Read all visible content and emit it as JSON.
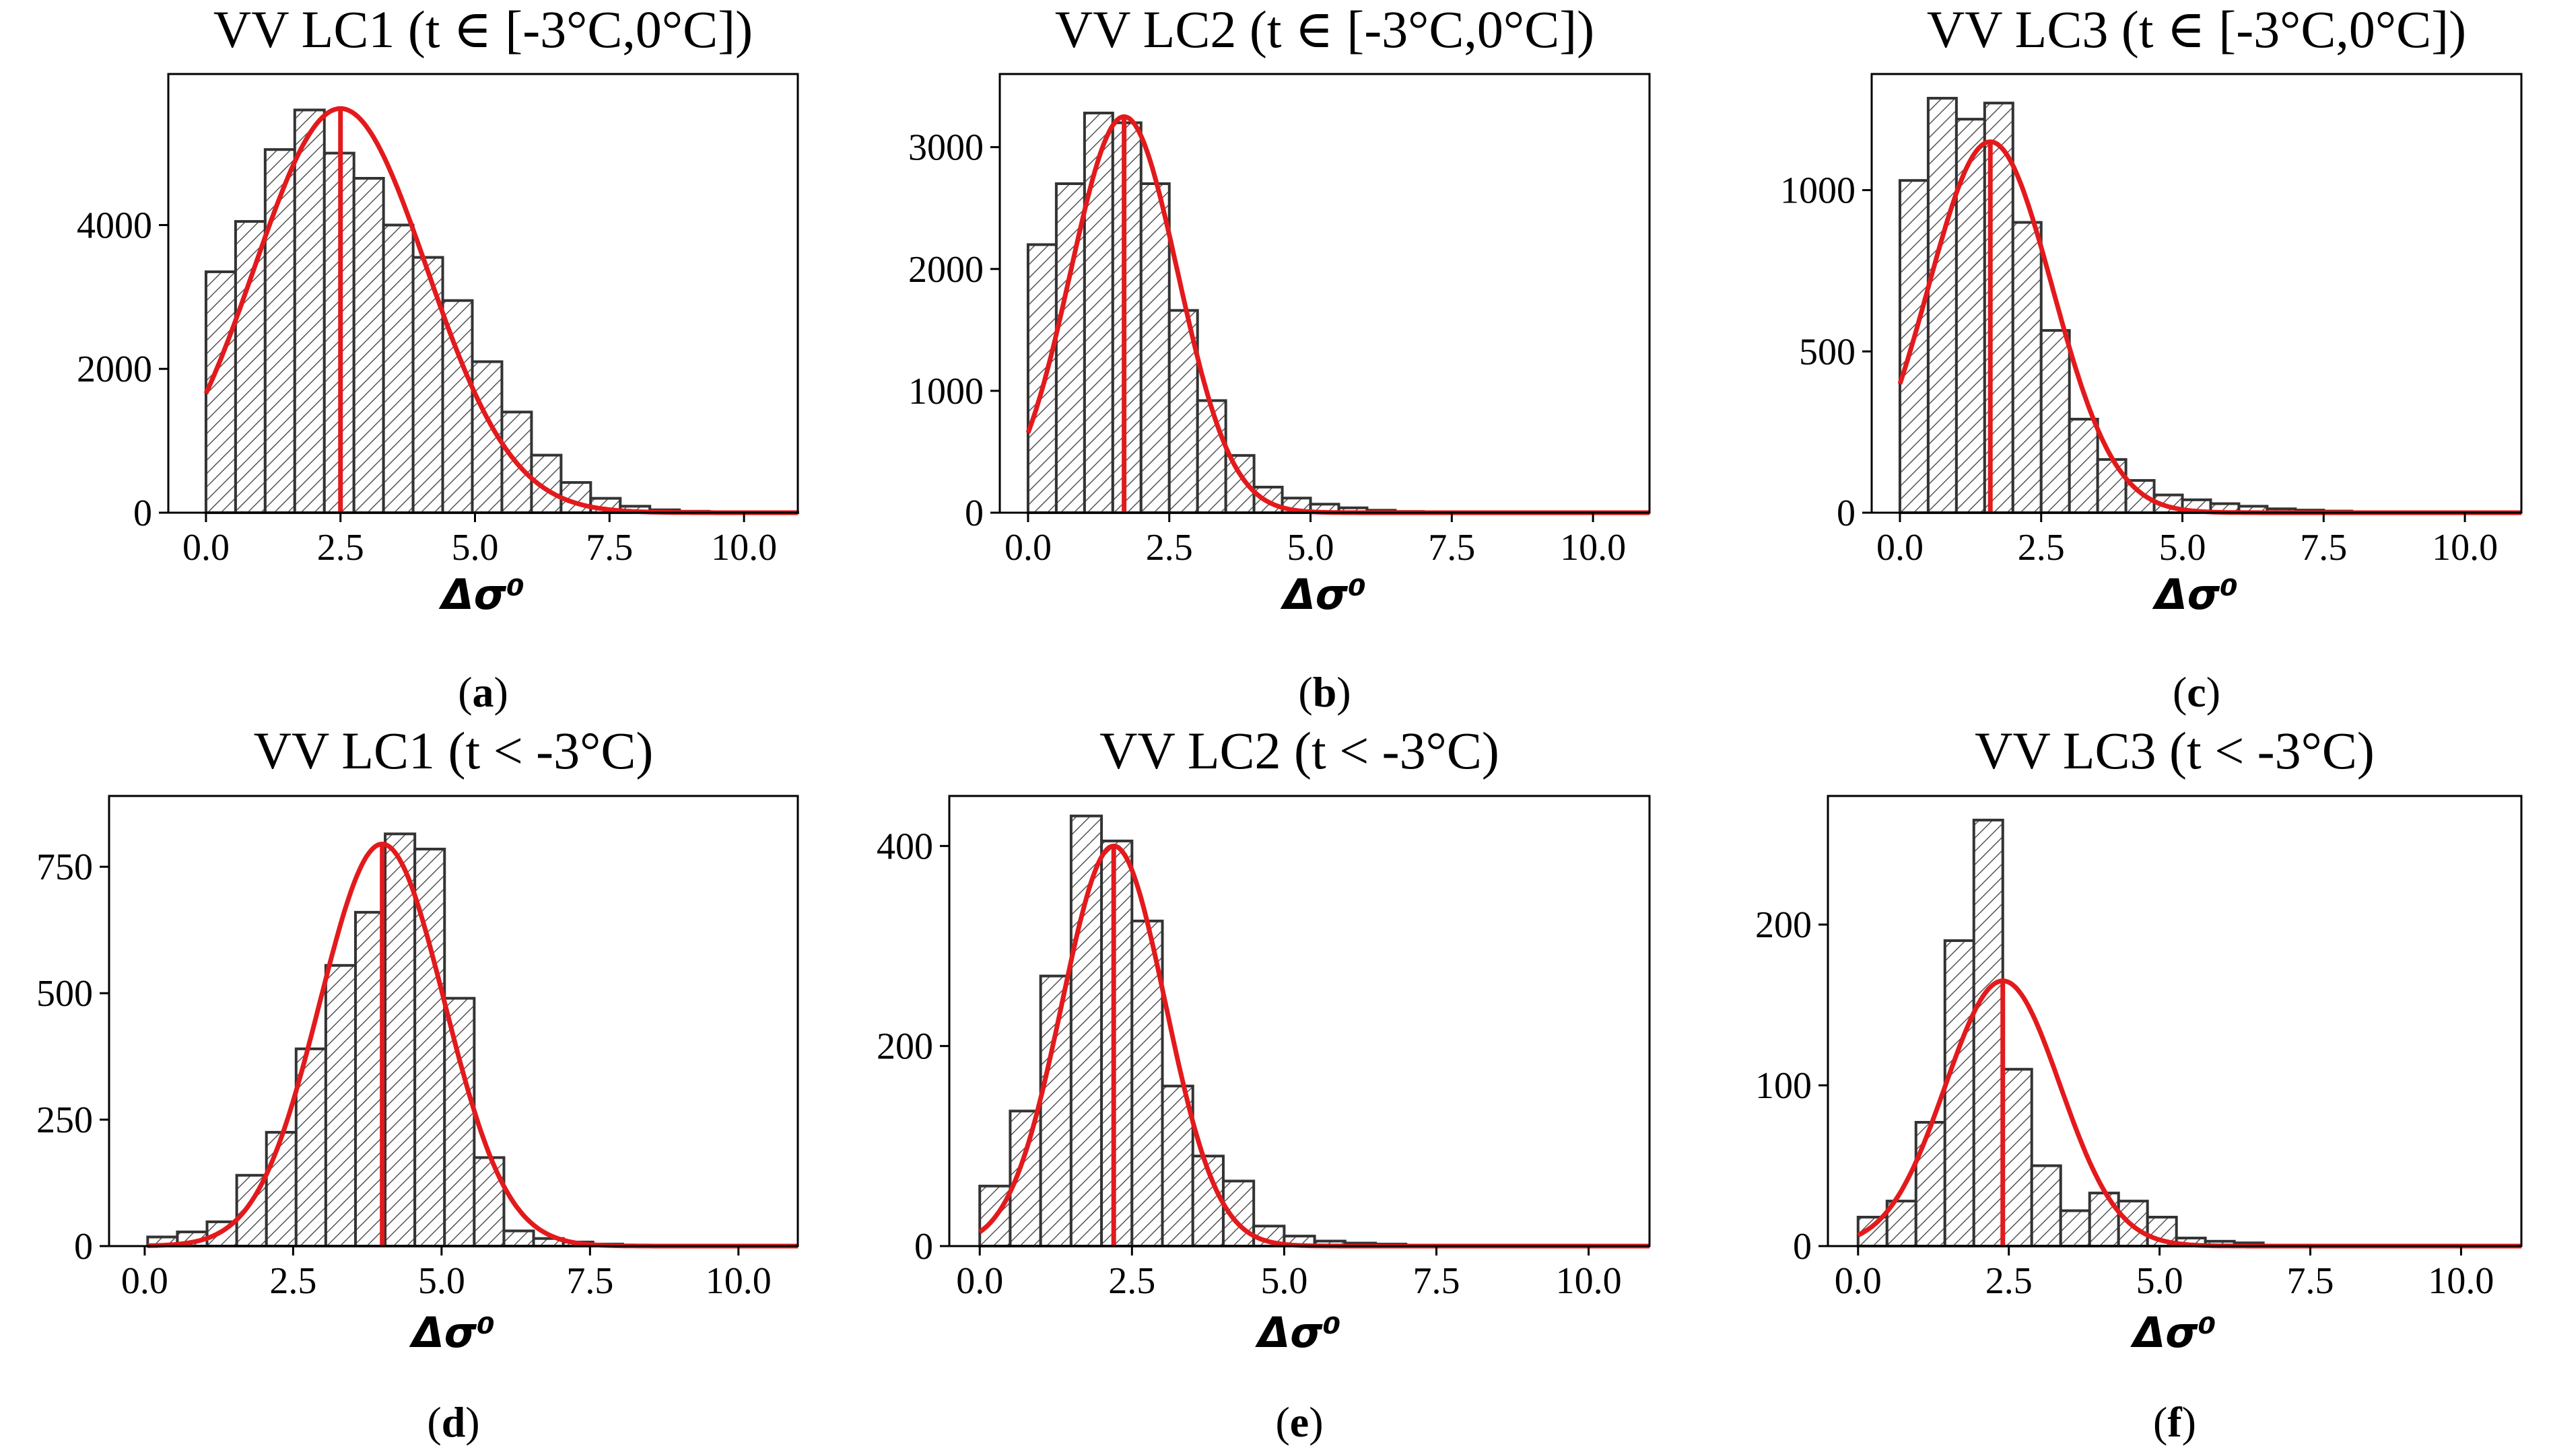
{
  "figure": {
    "colors": {
      "bar_edge": "#333333",
      "hatch": "#555555",
      "fit_line": "#e31a1c",
      "axis": "#000000"
    }
  },
  "chart_data": [
    {
      "type": "histogram",
      "panel_label": "a",
      "title": "VV LC1 (t ∈ [-3°C,0°C])",
      "xlabel": "Δσ⁰",
      "xlim": [
        -0.7,
        11
      ],
      "ylim": [
        0,
        6100
      ],
      "xticks": [
        0,
        2.5,
        5,
        7.5,
        10
      ],
      "xtick_labels": [
        "0.0",
        "2.5",
        "5.0",
        "7.5",
        "10.0"
      ],
      "yticks": [
        0,
        2000,
        4000
      ],
      "ytick_labels": [
        "0",
        "2000",
        "4000"
      ],
      "bin_start": 0,
      "bin_width": 0.55,
      "values": [
        3350,
        4050,
        5050,
        5600,
        5000,
        4650,
        4000,
        3550,
        2950,
        2100,
        1400,
        800,
        420,
        200,
        90,
        40,
        20,
        10,
        5,
        3
      ],
      "fit": {
        "mu": 2.5,
        "sigma": 1.6,
        "peak": 5620
      }
    },
    {
      "type": "histogram",
      "panel_label": "b",
      "title": "VV LC2 (t ∈ [-3°C,0°C])",
      "xlabel": "Δσ⁰",
      "xlim": [
        -0.5,
        11
      ],
      "ylim": [
        0,
        3600
      ],
      "xticks": [
        0,
        2.5,
        5,
        7.5,
        10
      ],
      "xtick_labels": [
        "0.0",
        "2.5",
        "5.0",
        "7.5",
        "10.0"
      ],
      "yticks": [
        0,
        1000,
        2000,
        3000
      ],
      "ytick_labels": [
        "0",
        "1000",
        "2000",
        "3000"
      ],
      "bin_start": 0,
      "bin_width": 0.5,
      "values": [
        2200,
        2700,
        3280,
        3200,
        2700,
        1660,
        920,
        470,
        210,
        120,
        70,
        40,
        20,
        10,
        6,
        4
      ],
      "fit": {
        "mu": 1.7,
        "sigma": 0.95,
        "peak": 3250
      }
    },
    {
      "type": "histogram",
      "panel_label": "c",
      "title": "VV LC3 (t ∈ [-3°C,0°C])",
      "xlabel": "Δσ⁰",
      "xlim": [
        -0.5,
        11
      ],
      "ylim": [
        0,
        1360
      ],
      "xticks": [
        0,
        2.5,
        5,
        7.5,
        10
      ],
      "xtick_labels": [
        "0.0",
        "2.5",
        "5.0",
        "7.5",
        "10.0"
      ],
      "yticks": [
        0,
        500,
        1000
      ],
      "ytick_labels": [
        "0",
        "500",
        "1000"
      ],
      "bin_start": 0,
      "bin_width": 0.5,
      "values": [
        1030,
        1285,
        1220,
        1270,
        900,
        565,
        290,
        165,
        100,
        55,
        40,
        28,
        20,
        12,
        8,
        5
      ],
      "fit": {
        "mu": 1.6,
        "sigma": 1.1,
        "peak": 1150
      }
    },
    {
      "type": "histogram",
      "panel_label": "d",
      "title": "VV LC1 (t < -3°C)",
      "xlabel": "Δσ⁰",
      "xlim": [
        -0.6,
        11
      ],
      "ylim": [
        0,
        890
      ],
      "xticks": [
        0,
        2.5,
        5,
        7.5,
        10
      ],
      "xtick_labels": [
        "0.0",
        "2.5",
        "5.0",
        "7.5",
        "10.0"
      ],
      "yticks": [
        0,
        250,
        500,
        750
      ],
      "ytick_labels": [
        "0",
        "250",
        "500",
        "750"
      ],
      "bin_start": 0.05,
      "bin_width": 0.5,
      "values": [
        18,
        28,
        48,
        140,
        225,
        390,
        555,
        660,
        815,
        785,
        490,
        175,
        30,
        15,
        8,
        4
      ],
      "fit": {
        "mu": 4.0,
        "sigma": 1.05,
        "peak": 795
      }
    },
    {
      "type": "histogram",
      "panel_label": "e",
      "title": "VV LC2 (t < -3°C)",
      "xlabel": "Δσ⁰",
      "xlim": [
        -0.5,
        11
      ],
      "ylim": [
        0,
        450
      ],
      "xticks": [
        0,
        2.5,
        5,
        7.5,
        10
      ],
      "xtick_labels": [
        "0.0",
        "2.5",
        "5.0",
        "7.5",
        "10.0"
      ],
      "yticks": [
        0,
        200,
        400
      ],
      "ytick_labels": [
        "0",
        "200",
        "400"
      ],
      "bin_start": 0,
      "bin_width": 0.5,
      "values": [
        60,
        135,
        270,
        430,
        405,
        325,
        160,
        90,
        65,
        20,
        10,
        5,
        3,
        2
      ],
      "fit": {
        "mu": 2.2,
        "sigma": 0.85,
        "peak": 400
      }
    },
    {
      "type": "histogram",
      "panel_label": "f",
      "title": "VV LC3 (t < -3°C)",
      "xlabel": "Δσ⁰",
      "xlim": [
        -0.5,
        11
      ],
      "ylim": [
        0,
        280
      ],
      "xticks": [
        0,
        2.5,
        5,
        7.5,
        10
      ],
      "xtick_labels": [
        "0.0",
        "2.5",
        "5.0",
        "7.5",
        "10.0"
      ],
      "yticks": [
        0,
        100,
        200
      ],
      "ytick_labels": [
        "0",
        "100",
        "200"
      ],
      "bin_start": 0,
      "bin_width": 0.48,
      "values": [
        18,
        28,
        77,
        190,
        265,
        110,
        50,
        22,
        33,
        28,
        18,
        5,
        3,
        2
      ],
      "fit": {
        "mu": 2.4,
        "sigma": 0.95,
        "peak": 165
      }
    }
  ]
}
